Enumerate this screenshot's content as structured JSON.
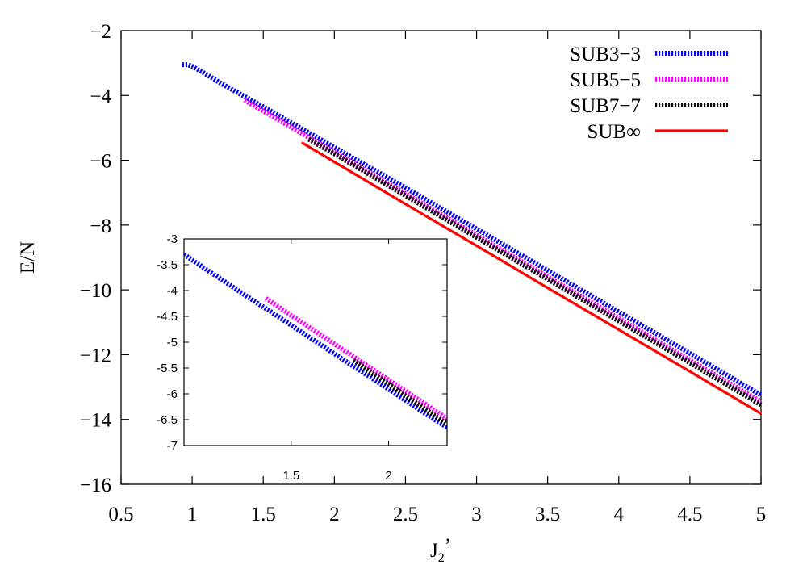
{
  "chart_data": [
    {
      "type": "line",
      "role": "main",
      "xlabel": "J2’",
      "xlabel_main": "J",
      "xlabel_sub": "2",
      "xlabel_prime": "’",
      "ylabel": "E/N",
      "xlim": [
        0.5,
        5
      ],
      "ylim": [
        -16,
        -2
      ],
      "xticks": [
        0.5,
        1,
        1.5,
        2,
        2.5,
        3,
        3.5,
        4,
        4.5,
        5
      ],
      "xtick_labels": [
        "0.5",
        "1",
        "1.5",
        "2",
        "2.5",
        "3",
        "3.5",
        "4",
        "4.5",
        "5"
      ],
      "yticks": [
        -16,
        -14,
        -12,
        -10,
        -8,
        -6,
        -4,
        -2
      ],
      "ytick_labels": [
        "−16",
        "−14",
        "−12",
        "−10",
        "−8",
        "−6",
        "−4",
        "−2"
      ],
      "legend_position": "top-right",
      "grid": false,
      "series": [
        {
          "name": "SUB3−3",
          "color": "#0000ff",
          "style": "dotted",
          "x": [
            0.93,
            0.97,
            1.0,
            1.05,
            1.1,
            1.2,
            1.5,
            2.0,
            2.5,
            3.0,
            3.5,
            4.0,
            4.5,
            5.0
          ],
          "y": [
            -3.05,
            -3.05,
            -3.1,
            -3.22,
            -3.35,
            -3.62,
            -4.35,
            -5.6,
            -6.85,
            -8.12,
            -9.4,
            -10.68,
            -11.96,
            -13.25
          ]
        },
        {
          "name": "SUB5−5",
          "color": "#ff00ff",
          "style": "dotted",
          "x": [
            1.37,
            1.5,
            2.0,
            2.5,
            3.0,
            3.5,
            4.0,
            4.5,
            5.0
          ],
          "y": [
            -4.15,
            -4.48,
            -5.75,
            -7.03,
            -8.31,
            -9.6,
            -10.88,
            -12.17,
            -13.45
          ]
        },
        {
          "name": "SUB7−7",
          "color": "#000000",
          "style": "dotted",
          "x": [
            1.82,
            2.0,
            2.5,
            3.0,
            3.5,
            4.0,
            4.5,
            5.0
          ],
          "y": [
            -5.35,
            -5.8,
            -7.09,
            -8.38,
            -9.67,
            -10.96,
            -12.25,
            -13.55
          ]
        },
        {
          "name": "SUB∞",
          "color": "#ff0000",
          "style": "solid",
          "x": [
            1.77,
            2.0,
            2.5,
            3.0,
            3.5,
            4.0,
            4.5,
            5.0
          ],
          "y": [
            -5.45,
            -6.05,
            -7.35,
            -8.64,
            -9.94,
            -11.23,
            -12.52,
            -13.82
          ]
        }
      ]
    },
    {
      "type": "line",
      "role": "inset",
      "xlim": [
        0.95,
        2.3
      ],
      "ylim": [
        -7,
        -3
      ],
      "xticks": [
        1.5,
        2
      ],
      "xtick_labels": [
        "1.5",
        "2"
      ],
      "yticks": [
        -7,
        -6.5,
        -6,
        -5.5,
        -5,
        -4.5,
        -4,
        -3.5,
        -3
      ],
      "ytick_labels": [
        "-7",
        "-6.5",
        "-6",
        "-5.5",
        "-5",
        "-4.5",
        "-4",
        "-3.5",
        "-3"
      ],
      "series": [
        {
          "name": "SUB3−3",
          "color": "#0000ff",
          "style": "dotted",
          "x": [
            0.95,
            1.0,
            1.1,
            1.2,
            1.3,
            1.4,
            1.5,
            1.6,
            1.7,
            1.8,
            1.9,
            2.0,
            2.1,
            2.2,
            2.3
          ],
          "y": [
            -3.3,
            -3.43,
            -3.68,
            -3.93,
            -4.18,
            -4.42,
            -4.67,
            -4.92,
            -5.17,
            -5.42,
            -5.66,
            -5.91,
            -6.16,
            -6.41,
            -6.65
          ]
        },
        {
          "name": "SUB5−5",
          "color": "#ff00ff",
          "style": "dotted",
          "x": [
            1.37,
            1.5,
            1.6,
            1.7,
            1.8,
            1.9,
            2.0,
            2.1,
            2.2,
            2.3
          ],
          "y": [
            -4.15,
            -4.48,
            -4.73,
            -4.98,
            -5.23,
            -5.48,
            -5.73,
            -5.98,
            -6.23,
            -6.48
          ]
        },
        {
          "name": "SUB7−7",
          "color": "#000000",
          "style": "dotted",
          "x": [
            1.82,
            1.9,
            2.0,
            2.1,
            2.2,
            2.3
          ],
          "y": [
            -5.35,
            -5.56,
            -5.81,
            -6.07,
            -6.33,
            -6.59
          ]
        }
      ]
    }
  ]
}
